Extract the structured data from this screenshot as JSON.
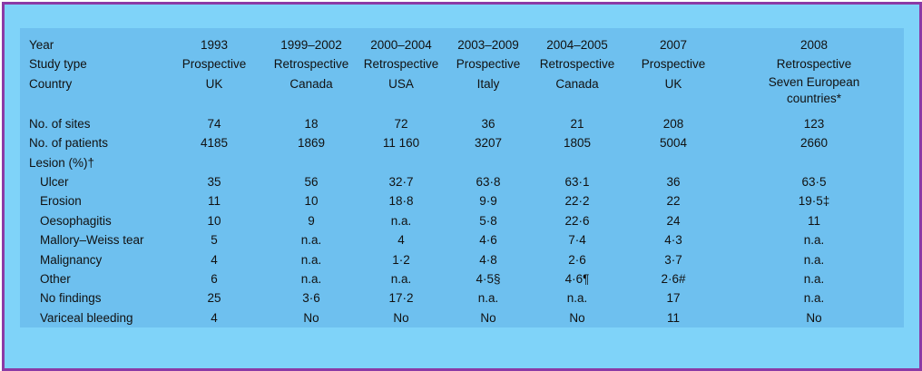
{
  "table": {
    "header_labels": [
      "Year",
      "Study type",
      "Country"
    ],
    "studies": [
      {
        "year": "1993",
        "type": "Prospective",
        "country": "UK"
      },
      {
        "year": "1999–2002",
        "type": "Retrospective",
        "country": "Canada"
      },
      {
        "year": "2000–2004",
        "type": "Retrospective",
        "country": "USA"
      },
      {
        "year": "2003–2009",
        "type": "Prospective",
        "country": "Italy"
      },
      {
        "year": "2004–2005",
        "type": "Retrospective",
        "country": "Canada"
      },
      {
        "year": "2007",
        "type": "Prospective",
        "country": "UK"
      },
      {
        "year": "2008",
        "type": "Retrospective",
        "country_line1": "Seven European",
        "country_line2": "countries*"
      }
    ],
    "rows": [
      {
        "label": "No. of sites",
        "sub": false,
        "values": [
          "74",
          "18",
          "72",
          "36",
          "21",
          "208",
          "123"
        ]
      },
      {
        "label": "No. of patients",
        "sub": false,
        "values": [
          "4185",
          "1869",
          "11 160",
          "3207",
          "1805",
          "5004",
          "2660"
        ]
      },
      {
        "label": "Lesion (%)†",
        "sub": false,
        "values": [
          "",
          "",
          "",
          "",
          "",
          "",
          ""
        ]
      },
      {
        "label": "Ulcer",
        "sub": true,
        "values": [
          "35",
          "56",
          "32·7",
          "63·8",
          "63·1",
          "36",
          "63·5"
        ]
      },
      {
        "label": "Erosion",
        "sub": true,
        "values": [
          "11",
          "10",
          "18·8",
          "9·9",
          "22·2",
          "22",
          "19·5‡"
        ]
      },
      {
        "label": "Oesophagitis",
        "sub": true,
        "values": [
          "10",
          "9",
          "n.a.",
          "5·8",
          "22·6",
          "24",
          "11"
        ]
      },
      {
        "label": "Mallory–Weiss tear",
        "sub": true,
        "values": [
          "5",
          "n.a.",
          "4",
          "4·6",
          "7·4",
          "4·3",
          "n.a."
        ]
      },
      {
        "label": "Malignancy",
        "sub": true,
        "values": [
          "4",
          "n.a.",
          "1·2",
          "4·8",
          "2·6",
          "3·7",
          "n.a."
        ]
      },
      {
        "label": "Other",
        "sub": true,
        "values": [
          "6",
          "n.a.",
          "n.a.",
          "4·5§",
          "4·6¶",
          "2·6#",
          "n.a."
        ]
      },
      {
        "label": "No findings",
        "sub": true,
        "values": [
          "25",
          "3·6",
          "17·2",
          "n.a.",
          "n.a.",
          "17",
          "n.a."
        ]
      },
      {
        "label": "Variceal bleeding",
        "sub": true,
        "values": [
          "4",
          "No",
          "No",
          "No",
          "No",
          "11",
          "No"
        ]
      }
    ]
  }
}
